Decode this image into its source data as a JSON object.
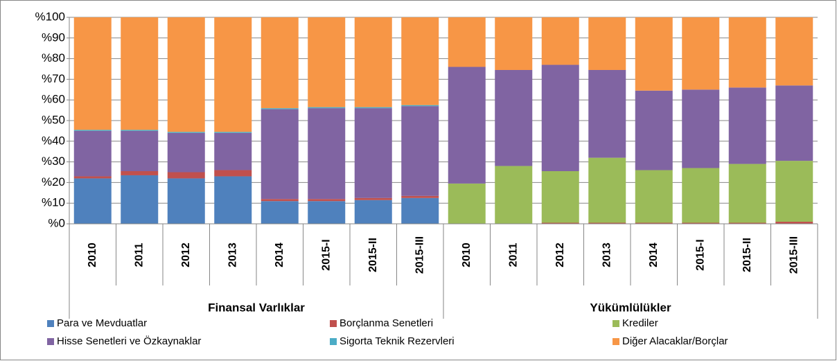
{
  "chart_data": {
    "type": "stacked_bar",
    "groups": [
      {
        "label": "Finansal Varlıklar",
        "categories": [
          "2010",
          "2011",
          "2012",
          "2013",
          "2014",
          "2015-I",
          "2015-II",
          "2015-III"
        ]
      },
      {
        "label": "Yükümlülükler",
        "categories": [
          "2010",
          "2011",
          "2012",
          "2013",
          "2014",
          "2015-I",
          "2015-II",
          "2015-III"
        ]
      }
    ],
    "series": [
      {
        "name": "Para ve Mevduatlar",
        "color": "#4f81bd",
        "values": [
          22,
          23.5,
          22,
          23,
          11,
          11,
          11.5,
          12.5,
          0,
          0,
          0,
          0,
          0,
          0,
          0,
          0
        ]
      },
      {
        "name": "Borçlanma Senetleri",
        "color": "#c0504d",
        "values": [
          1,
          2,
          3,
          3,
          1,
          1,
          1,
          1,
          0,
          0,
          0.5,
          0.5,
          0.5,
          0.5,
          0.5,
          1
        ]
      },
      {
        "name": "Krediler",
        "color": "#9bbb59",
        "values": [
          0,
          0,
          0,
          0,
          0,
          0,
          0,
          0,
          19.5,
          28,
          25,
          31.5,
          25.5,
          26.5,
          28.5,
          29.5
        ]
      },
      {
        "name": " Hisse Senetleri ve Özkaynaklar",
        "color": "#8064a2",
        "values": [
          22,
          19.5,
          19,
          18,
          43.5,
          44,
          43.5,
          43.5,
          56.5,
          46.5,
          51.5,
          42.5,
          38.5,
          38,
          37,
          36.5
        ]
      },
      {
        "name": "Sigorta Teknik Rezervleri",
        "color": "#4bacc6",
        "values": [
          0.5,
          0.5,
          0.5,
          0.5,
          0.5,
          0.5,
          0.5,
          0.5,
          0,
          0,
          0,
          0,
          0,
          0,
          0,
          0
        ]
      },
      {
        "name": "Diğer Alacaklar/Borçlar",
        "color": "#f79646",
        "values": [
          54.5,
          54.5,
          55.5,
          55.5,
          44,
          43.5,
          43.5,
          42.5,
          24,
          25.5,
          23,
          25.5,
          35.5,
          35,
          34,
          33
        ]
      }
    ],
    "ylim": [
      0,
      100
    ],
    "yticks": [
      {
        "value": 0,
        "label": "%0"
      },
      {
        "value": 10,
        "label": "%10"
      },
      {
        "value": 20,
        "label": "%20"
      },
      {
        "value": 30,
        "label": "%30"
      },
      {
        "value": 40,
        "label": "%40"
      },
      {
        "value": 50,
        "label": "%50"
      },
      {
        "value": 60,
        "label": "%60"
      },
      {
        "value": 70,
        "label": "%70"
      },
      {
        "value": 80,
        "label": "%80"
      },
      {
        "value": 90,
        "label": "%90"
      },
      {
        "value": 100,
        "label": "%100"
      }
    ],
    "grid": true
  }
}
